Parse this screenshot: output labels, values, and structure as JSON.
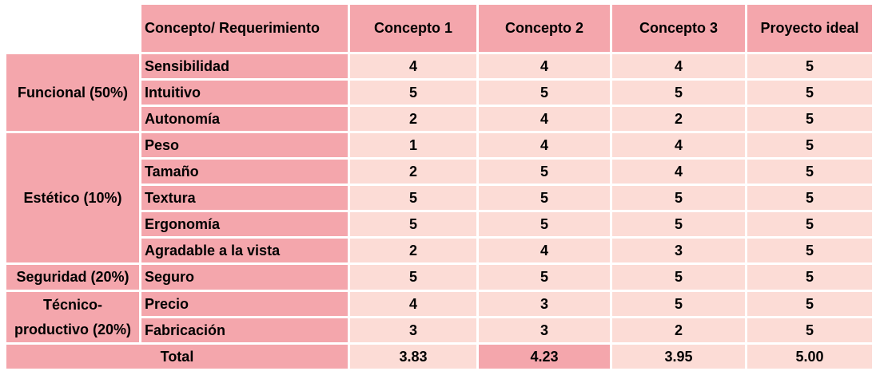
{
  "header": {
    "concept_req": "Concepto/ Requerimiento",
    "c1": "Concepto 1",
    "c2": "Concepto 2",
    "c3": "Concepto 3",
    "ideal": "Proyecto ideal"
  },
  "groups": [
    {
      "label": "Funcional (50%)"
    },
    {
      "label": "Estético (10%)"
    },
    {
      "label": "Seguridad (20%)"
    },
    {
      "label_line1": "Técnico-",
      "label_line2": "productivo (20%)"
    }
  ],
  "rows": [
    {
      "req": "Sensibilidad",
      "c1": "4",
      "c2": "4",
      "c3": "4",
      "ideal": "5"
    },
    {
      "req": "Intuitivo",
      "c1": "5",
      "c2": "5",
      "c3": "5",
      "ideal": "5"
    },
    {
      "req": "Autonomía",
      "c1": "2",
      "c2": "4",
      "c3": "2",
      "ideal": "5"
    },
    {
      "req": "Peso",
      "c1": "1",
      "c2": "4",
      "c3": "4",
      "ideal": "5"
    },
    {
      "req": "Tamaño",
      "c1": "2",
      "c2": "5",
      "c3": "4",
      "ideal": "5"
    },
    {
      "req": "Textura",
      "c1": "5",
      "c2": "5",
      "c3": "5",
      "ideal": "5"
    },
    {
      "req": "Ergonomía",
      "c1": "5",
      "c2": "5",
      "c3": "5",
      "ideal": "5"
    },
    {
      "req": "Agradable a la vista",
      "c1": "2",
      "c2": "4",
      "c3": "3",
      "ideal": "5"
    },
    {
      "req": "Seguro",
      "c1": "5",
      "c2": "5",
      "c3": "5",
      "ideal": "5"
    },
    {
      "req": "Precio",
      "c1": "4",
      "c2": "3",
      "c3": "5",
      "ideal": "5"
    },
    {
      "req": "Fabricación",
      "c1": "3",
      "c2": "3",
      "c3": "2",
      "ideal": "5"
    }
  ],
  "total": {
    "label": "Total",
    "c1": "3.83",
    "c2": "4.23",
    "c3": "3.95",
    "ideal": "5.00"
  },
  "colors": {
    "dark_pink": "#f4a6ac",
    "light_pink": "#fcdcd6"
  }
}
